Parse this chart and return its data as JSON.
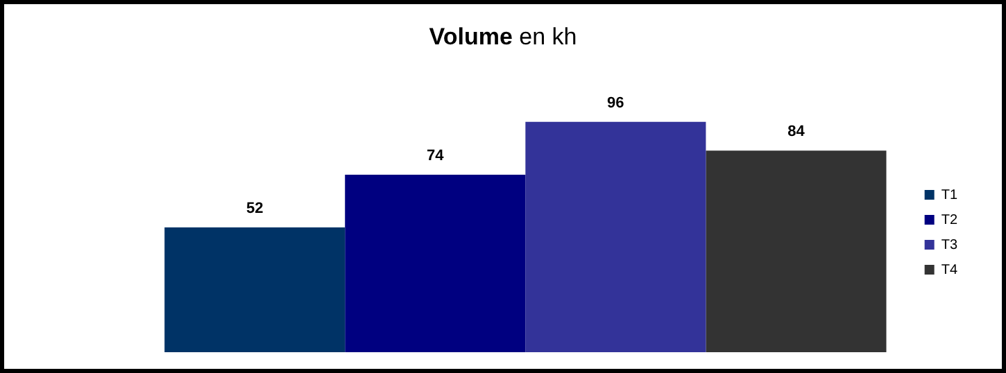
{
  "chart_data": {
    "type": "bar",
    "title": "Volume en kh",
    "categories": [
      null
    ],
    "series": [
      {
        "name": "T1",
        "color": "#003366",
        "values": [
          52
        ]
      },
      {
        "name": "T2",
        "color": "#000080",
        "values": [
          74
        ]
      },
      {
        "name": "T3",
        "color": "#333399",
        "values": [
          96
        ]
      },
      {
        "name": "T4",
        "color": "#333333",
        "values": [
          84
        ]
      }
    ],
    "data_labels": true,
    "legend": "right",
    "tick_labels": false
  }
}
